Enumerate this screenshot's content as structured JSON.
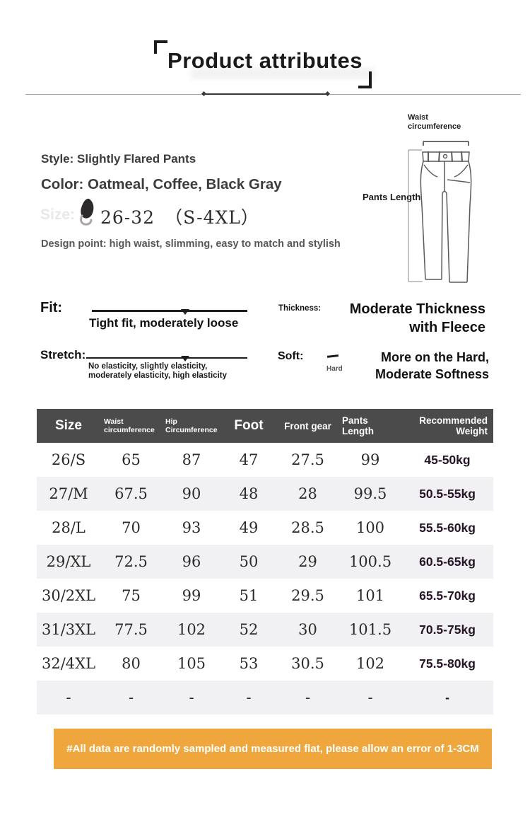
{
  "title": "Product attributes",
  "info": {
    "style": "Style: Slightly Flared Pants",
    "color": "Color: Oatmeal, Coffee, Black Gray",
    "size_ghost_label": "Size:",
    "size_value": "26-32",
    "size_range": "（S-4XL）",
    "design_point": "Design point: high waist, slimming, easy to match and stylish"
  },
  "diagram": {
    "waist_label": "Waist circumference",
    "length_label": "Pants Length"
  },
  "attributes": {
    "fit_label": "Fit:",
    "fit_value": "Tight fit, moderately loose",
    "stretch_label": "Stretch:",
    "stretch_line1": "No elasticity, slightly elasticity,",
    "stretch_line2": "moderately elasticity, high elasticity",
    "thickness_label": "Thickness:",
    "thickness_line1": "Moderate Thickness",
    "thickness_line2": "with Fleece",
    "soft_label": "Soft:",
    "soft_scale_label": "Hard",
    "soft_line1": "More on the Hard,",
    "soft_line2": "Moderate Softness"
  },
  "size_table": {
    "columns": [
      "Size",
      "Waist circumference",
      "Hip Circumference",
      "Foot",
      "Front gear",
      "Pants Length",
      "Recommended Weight"
    ],
    "rows": [
      [
        "26/S",
        "65",
        "87",
        "47",
        "27.5",
        "99",
        "45-50kg"
      ],
      [
        "27/M",
        "67.5",
        "90",
        "48",
        "28",
        "99.5",
        "50.5-55kg"
      ],
      [
        "28/L",
        "70",
        "93",
        "49",
        "28.5",
        "100",
        "55.5-60kg"
      ],
      [
        "29/XL",
        "72.5",
        "96",
        "50",
        "29",
        "100.5",
        "60.5-65kg"
      ],
      [
        "30/2XL",
        "75",
        "99",
        "51",
        "29.5",
        "101",
        "65.5-70kg"
      ],
      [
        "31/3XL",
        "77.5",
        "102",
        "52",
        "30",
        "101.5",
        "70.5-75kg"
      ],
      [
        "32/4XL",
        "80",
        "105",
        "53",
        "30.5",
        "102",
        "75.5-80kg"
      ],
      [
        "-",
        "-",
        "-",
        "-",
        "-",
        "-",
        "-"
      ]
    ]
  },
  "footer_note": "#All data are randomly sampled and measured flat, please allow an error of 1-3CM",
  "colors": {
    "header_bg": "#4b4b4b",
    "alt_row": "#f1f0f2",
    "banner_bg": "#efa73d",
    "weight_color": "#251526"
  }
}
